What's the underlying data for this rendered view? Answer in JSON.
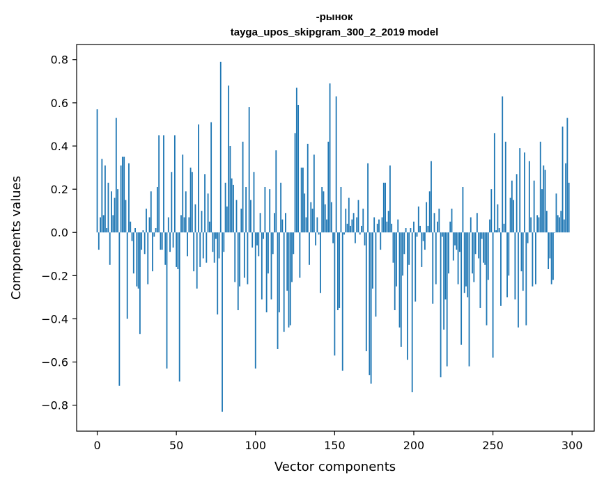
{
  "chart_data": {
    "type": "bar",
    "title": [
      "-рынок",
      "tayga_upos_skipgram_300_2_2019 model"
    ],
    "xlabel": "Vector components",
    "ylabel": "Components values",
    "xlim": [
      -13,
      314
    ],
    "ylim": [
      -0.92,
      0.87
    ],
    "xticks": [
      {
        "value": 0,
        "label": "0"
      },
      {
        "value": 50,
        "label": "50"
      },
      {
        "value": 100,
        "label": "100"
      },
      {
        "value": 150,
        "label": "150"
      },
      {
        "value": 200,
        "label": "200"
      },
      {
        "value": 250,
        "label": "250"
      },
      {
        "value": 300,
        "label": "300"
      }
    ],
    "yticks": [
      {
        "value": 0.8,
        "label": "0.8"
      },
      {
        "value": 0.6,
        "label": "0.6"
      },
      {
        "value": 0.4,
        "label": "0.4"
      },
      {
        "value": 0.2,
        "label": "0.2"
      },
      {
        "value": 0.0,
        "label": "0.0"
      },
      {
        "value": -0.2,
        "label": "−0.2"
      },
      {
        "value": -0.4,
        "label": "−0.4"
      },
      {
        "value": -0.6,
        "label": "−0.6"
      },
      {
        "value": -0.8,
        "label": "−0.8"
      }
    ],
    "grid": false,
    "bar_color": "#1f77b4",
    "values": [
      0.57,
      -0.08,
      0.07,
      0.34,
      0.08,
      0.31,
      0.02,
      0.23,
      -0.15,
      0.19,
      0.08,
      0.16,
      0.53,
      0.2,
      -0.71,
      0.31,
      0.35,
      0.35,
      0.15,
      -0.4,
      0.32,
      0.05,
      -0.04,
      -0.19,
      0.02,
      -0.25,
      -0.26,
      -0.47,
      -0.08,
      0.01,
      -0.1,
      0.11,
      -0.24,
      0.07,
      0.19,
      -0.18,
      -0.02,
      0.02,
      0.21,
      0.45,
      -0.08,
      -0.08,
      0.45,
      -0.15,
      -0.63,
      0.07,
      -0.09,
      0.28,
      -0.07,
      0.45,
      -0.16,
      -0.17,
      -0.69,
      0.08,
      0.36,
      0.07,
      0.19,
      -0.11,
      0.07,
      0.3,
      0.28,
      -0.18,
      0.13,
      -0.26,
      0.5,
      -0.16,
      0.1,
      -0.12,
      0.27,
      -0.14,
      0.18,
      0.05,
      0.51,
      -0.09,
      -0.14,
      -0.03,
      -0.38,
      -0.12,
      0.79,
      -0.83,
      -0.09,
      0.23,
      0.12,
      0.68,
      0.4,
      0.25,
      0.22,
      -0.23,
      0.15,
      -0.36,
      -0.25,
      0.11,
      0.42,
      -0.21,
      0.21,
      -0.24,
      0.58,
      0.15,
      -0.07,
      0.28,
      -0.63,
      -0.06,
      -0.11,
      0.09,
      -0.31,
      -0.03,
      0.21,
      -0.37,
      -0.19,
      0.2,
      -0.31,
      -0.1,
      0.09,
      0.38,
      -0.54,
      -0.37,
      0.23,
      0.06,
      -0.46,
      0.09,
      -0.27,
      -0.44,
      -0.43,
      -0.23,
      -0.1,
      0.46,
      0.67,
      0.59,
      -0.21,
      0.3,
      0.3,
      0.18,
      0.07,
      0.41,
      -0.15,
      0.14,
      0.11,
      0.36,
      -0.06,
      0.07,
      -0.01,
      -0.28,
      0.21,
      0.19,
      0.13,
      0.06,
      0.42,
      0.69,
      0.14,
      -0.05,
      -0.57,
      0.63,
      -0.36,
      -0.35,
      0.21,
      -0.64,
      -0.01,
      0.11,
      0.04,
      0.16,
      0.03,
      0.06,
      0.09,
      -0.05,
      0.07,
      0.15,
      -0.01,
      0.03,
      0.11,
      -0.06,
      -0.55,
      0.32,
      -0.66,
      -0.7,
      -0.26,
      0.07,
      -0.39,
      0.04,
      0.06,
      -0.08,
      0.07,
      0.23,
      0.23,
      0.05,
      0.1,
      0.31,
      0.04,
      -0.14,
      -0.36,
      -0.25,
      0.06,
      -0.44,
      -0.53,
      -0.2,
      -0.1,
      0.02,
      -0.59,
      -0.15,
      0.02,
      -0.74,
      0.05,
      -0.32,
      -0.02,
      0.12,
      0.03,
      -0.16,
      -0.04,
      -0.08,
      0.14,
      0.03,
      0.19,
      0.33,
      -0.33,
      0.09,
      -0.24,
      0.05,
      0.11,
      -0.67,
      -0.02,
      -0.45,
      -0.31,
      -0.62,
      -0.19,
      0.05,
      0.11,
      -0.13,
      -0.06,
      -0.08,
      -0.24,
      -0.09,
      -0.52,
      0.21,
      -0.28,
      -0.25,
      -0.3,
      -0.62,
      0.07,
      -0.19,
      -0.23,
      -0.1,
      0.09,
      -0.12,
      -0.35,
      -0.03,
      -0.14,
      -0.15,
      -0.43,
      -0.22,
      0.06,
      0.2,
      -0.58,
      0.46,
      0.01,
      0.13,
      0.02,
      -0.34,
      0.63,
      0.04,
      0.42,
      -0.3,
      -0.2,
      0.16,
      0.24,
      0.15,
      -0.31,
      0.27,
      -0.44,
      0.39,
      -0.18,
      -0.27,
      0.37,
      -0.43,
      -0.05,
      0.33,
      0.07,
      -0.25,
      0.24,
      -0.24,
      0.08,
      0.07,
      0.42,
      0.2,
      0.31,
      0.29,
      0.1,
      -0.17,
      -0.12,
      -0.24,
      -0.22,
      0.0,
      0.18,
      0.08,
      0.07,
      0.1,
      0.49,
      0.06,
      0.32,
      0.53,
      0.23
    ]
  }
}
